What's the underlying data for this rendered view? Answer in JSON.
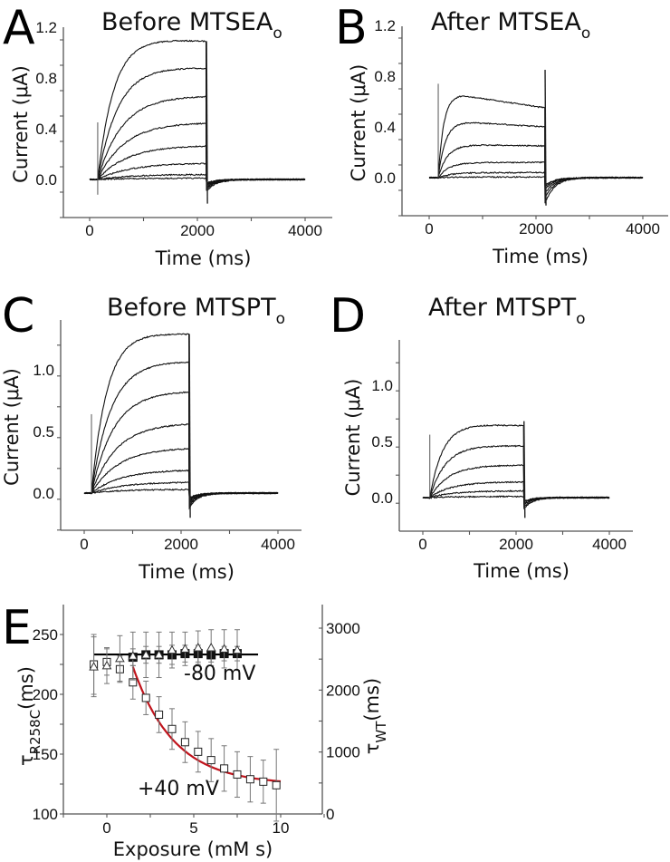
{
  "chart_data": [
    {
      "id": "A",
      "type": "line",
      "panel_label": "A",
      "title": "Before MTSEA",
      "title_subscript": "o",
      "xlabel": "Time (ms)",
      "ylabel": "Current (μA)",
      "xlim": [
        -500,
        4500
      ],
      "ylim": [
        -0.3,
        1.2
      ],
      "xticks": [
        0,
        2000,
        4000
      ],
      "xtick_labels": [
        "0",
        "2000",
        "4000"
      ],
      "yticks": [
        0.0,
        0.4,
        0.8,
        1.2
      ],
      "ytick_labels": [
        "0.0",
        "0.4",
        "0.8",
        "1.2"
      ],
      "pulse": {
        "start_ms": 150,
        "end_ms": 2170,
        "record_end_ms": 4000
      },
      "series": [
        {
          "name": "step 1",
          "peak": 1.12,
          "end": 1.09,
          "tau_ms": 300
        },
        {
          "name": "step 2",
          "peak": 0.9,
          "end": 0.88,
          "tau_ms": 380
        },
        {
          "name": "step 3",
          "peak": 0.66,
          "end": 0.66,
          "tau_ms": 450
        },
        {
          "name": "step 4",
          "peak": 0.45,
          "end": 0.45,
          "tau_ms": 500
        },
        {
          "name": "step 5",
          "peak": 0.27,
          "end": 0.27,
          "tau_ms": 550
        },
        {
          "name": "step 6",
          "peak": 0.13,
          "end": 0.13,
          "tau_ms": 600
        },
        {
          "name": "step 7",
          "peak": 0.04,
          "end": 0.04,
          "tau_ms": 600
        },
        {
          "name": "step 8",
          "peak": 0.01,
          "end": 0.01,
          "tau_ms": 600
        }
      ],
      "capacitive_spike": {
        "on_max": 0.45,
        "on_min": -0.12,
        "off_min": -0.19
      },
      "tail_min": -0.09
    },
    {
      "id": "B",
      "type": "line",
      "panel_label": "B",
      "title": "After MTSEA",
      "title_subscript": "o",
      "xlabel": "Time (ms)",
      "ylabel": "Current (μA)",
      "xlim": [
        -500,
        4500
      ],
      "ylim": [
        -0.3,
        1.2
      ],
      "xticks": [
        0,
        2000,
        4000
      ],
      "xtick_labels": [
        "0",
        "2000",
        "4000"
      ],
      "yticks": [
        0.0,
        0.4,
        0.8,
        1.2
      ],
      "ytick_labels": [
        "0.0",
        "0.4",
        "0.8",
        "1.2"
      ],
      "pulse": {
        "start_ms": 170,
        "end_ms": 2170,
        "record_end_ms": 4000
      },
      "series": [
        {
          "name": "step 1",
          "peak": 0.65,
          "end": 0.55,
          "tau_ms": 100
        },
        {
          "name": "step 2",
          "peak": 0.44,
          "end": 0.4,
          "tau_ms": 130
        },
        {
          "name": "step 3",
          "peak": 0.26,
          "end": 0.25,
          "tau_ms": 170
        },
        {
          "name": "step 4",
          "peak": 0.12,
          "end": 0.12,
          "tau_ms": 200
        },
        {
          "name": "step 5",
          "peak": 0.04,
          "end": 0.04,
          "tau_ms": 250
        },
        {
          "name": "step 6",
          "peak": 0.005,
          "end": 0.005,
          "tau_ms": 250
        }
      ],
      "capacitive_spike": {
        "on_max": 0.74,
        "on_min": 0.0,
        "off_max": 0.85,
        "off_min": -0.22
      },
      "tail_min": -0.2
    },
    {
      "id": "C",
      "type": "line",
      "panel_label": "C",
      "title": "Before MTSPT",
      "title_subscript": "o",
      "xlabel": "Time (ms)",
      "ylabel": "Current (μA)",
      "xlim": [
        -500,
        4500
      ],
      "ylim": [
        -0.3,
        1.4
      ],
      "xticks": [
        0,
        2000,
        4000
      ],
      "xtick_labels": [
        "0",
        "2000",
        "4000"
      ],
      "yticks": [
        0.0,
        0.5,
        1.0
      ],
      "ytick_labels": [
        "0.0",
        "0.5",
        "1.0"
      ],
      "pulse": {
        "start_ms": 150,
        "end_ms": 2170,
        "record_end_ms": 4000
      },
      "series": [
        {
          "name": "step 1",
          "peak": 1.31,
          "end": 1.29,
          "tau_ms": 320
        },
        {
          "name": "step 2",
          "peak": 1.07,
          "end": 1.07,
          "tau_ms": 400
        },
        {
          "name": "step 3",
          "peak": 0.83,
          "end": 0.83,
          "tau_ms": 460
        },
        {
          "name": "step 4",
          "peak": 0.57,
          "end": 0.57,
          "tau_ms": 520
        },
        {
          "name": "step 5",
          "peak": 0.37,
          "end": 0.37,
          "tau_ms": 560
        },
        {
          "name": "step 6",
          "peak": 0.19,
          "end": 0.19,
          "tau_ms": 600
        },
        {
          "name": "step 7",
          "peak": 0.09,
          "end": 0.09,
          "tau_ms": 620
        },
        {
          "name": "step 8",
          "peak": 0.03,
          "end": 0.03,
          "tau_ms": 620
        }
      ],
      "capacitive_spike": {
        "on_max": 0.64,
        "on_min": 0.0,
        "off_min": -0.2
      },
      "tail_min": -0.12
    },
    {
      "id": "D",
      "type": "line",
      "panel_label": "D",
      "title": "After MTSPT",
      "title_subscript": "o",
      "xlabel": "Time (ms)",
      "ylabel": "Current (μA)",
      "xlim": [
        -500,
        4500
      ],
      "ylim": [
        -0.3,
        1.4
      ],
      "xticks": [
        0,
        2000,
        4000
      ],
      "xtick_labels": [
        "0",
        "2000",
        "4000"
      ],
      "yticks": [
        0.0,
        0.5,
        1.0
      ],
      "ytick_labels": [
        "0.0",
        "0.5",
        "1.0"
      ],
      "pulse": {
        "start_ms": 150,
        "end_ms": 2170,
        "record_end_ms": 4000
      },
      "series": [
        {
          "name": "step 1",
          "peak": 0.66,
          "end": 0.64,
          "tau_ms": 280
        },
        {
          "name": "step 2",
          "peak": 0.47,
          "end": 0.46,
          "tau_ms": 340
        },
        {
          "name": "step 3",
          "peak": 0.29,
          "end": 0.29,
          "tau_ms": 400
        },
        {
          "name": "step 4",
          "peak": 0.14,
          "end": 0.14,
          "tau_ms": 450
        },
        {
          "name": "step 5",
          "peak": 0.06,
          "end": 0.06,
          "tau_ms": 500
        },
        {
          "name": "step 6",
          "peak": 0.01,
          "end": 0.01,
          "tau_ms": 500
        }
      ],
      "capacitive_spike": {
        "on_max": 0.56,
        "on_min": 0.0,
        "off_max": 0.68,
        "off_min": -0.18
      },
      "tail_min": -0.1
    },
    {
      "id": "E",
      "type": "scatter",
      "panel_label": "E",
      "xlabel": "Exposure (mM s)",
      "ylabel_main": "τ",
      "ylabel_sub": "R258C",
      "ylabel_unit": "(ms)",
      "y2label_main": "τ",
      "y2label_sub": "WT",
      "y2label_unit": "(ms)",
      "xlim": [
        -2.5,
        12.5
      ],
      "ylim": [
        100,
        272
      ],
      "y2lim": [
        0,
        3250
      ],
      "xticks": [
        0,
        5,
        10
      ],
      "xtick_labels": [
        "0",
        "5",
        "10"
      ],
      "yticks": [
        100,
        150,
        200,
        250
      ],
      "ytick_labels": [
        "100",
        "150",
        "200",
        "250"
      ],
      "y2ticks": [
        0,
        1000,
        2000,
        3000
      ],
      "y2tick_labels": [
        "0",
        "1000",
        "2000",
        "3000"
      ],
      "x": [
        -0.75,
        0,
        0.75,
        1.5,
        2.25,
        3.0,
        3.75,
        4.5,
        5.25,
        6.0,
        6.75,
        7.5,
        8.25,
        9.0,
        9.75
      ],
      "series": [
        {
          "name": "+40 mV (open squares)",
          "marker": "open-square",
          "values": [
            225,
            227,
            221,
            210,
            197,
            183,
            171,
            160,
            152,
            145,
            138,
            133,
            129,
            127,
            124
          ],
          "errors": [
            25,
            11,
            11,
            14,
            14,
            15,
            17,
            17,
            17,
            18,
            19,
            19,
            19,
            18,
            30
          ]
        },
        {
          "name": "-80 mV (filled squares)",
          "marker": "filled-square",
          "x": [
            1.5,
            2.25,
            3.0,
            3.75,
            4.5,
            5.25,
            6.0,
            6.75,
            7.5
          ],
          "values": [
            231,
            233,
            233,
            233,
            234,
            234,
            233,
            234,
            234
          ],
          "errors": [
            7,
            7,
            7,
            8,
            7,
            7,
            6,
            6,
            6
          ]
        },
        {
          "name": "-80 mV (open triangles, WT)",
          "marker": "open-triangle",
          "x": [
            -0.75,
            0,
            0.75,
            1.5,
            2.25,
            3.0,
            3.75,
            4.5,
            5.25,
            6.0,
            6.75,
            7.5
          ],
          "values": [
            223,
            224,
            230,
            232,
            233,
            233,
            237,
            238,
            239,
            239,
            238,
            237
          ],
          "errors": [
            25,
            15,
            19,
            20,
            19,
            19,
            15,
            14,
            14,
            15,
            16,
            17
          ]
        }
      ],
      "fits": [
        {
          "name": "-80 mV fit",
          "color": "#000000",
          "type": "constant",
          "x_range": [
            -0.75,
            8.7
          ],
          "value": 233.3
        },
        {
          "name": "+40 mV fit",
          "color": "#c0141c",
          "type": "exponential",
          "x_range": [
            1.5,
            10
          ],
          "y0": 223,
          "x0": 1.5,
          "plateau": 124.5,
          "k": 0.42
        }
      ],
      "annotations": [
        {
          "text": "-80 mV",
          "x": 6.0,
          "y": 218
        },
        {
          "text": "+40 mV",
          "x": 2.2,
          "y": 124
        }
      ]
    }
  ]
}
